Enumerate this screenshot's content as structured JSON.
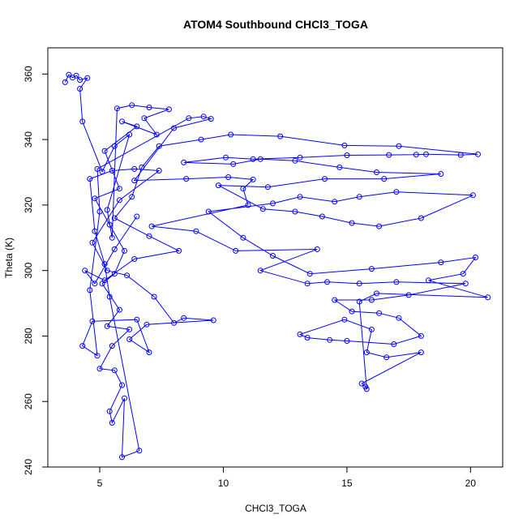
{
  "chart_data": {
    "type": "scatter",
    "title": "ATOM4 Southbound CHCl3_TOGA",
    "xlabel": "CHCl3_TOGA",
    "ylabel": "Theta (K)",
    "xlim": [
      2.9,
      21.3
    ],
    "ylim": [
      240,
      368
    ],
    "xticks": [
      5,
      10,
      15,
      20
    ],
    "yticks": [
      240,
      260,
      280,
      300,
      320,
      340,
      360
    ],
    "grid": false,
    "legend": "none",
    "style": "points connected by lines (open circles)",
    "series_color": "#0000ff",
    "series": [
      {
        "points": [
          [
            3.6,
            357.5
          ],
          [
            3.75,
            359.8
          ],
          [
            3.9,
            358.9
          ],
          [
            4.05,
            359.5
          ],
          [
            4.2,
            358.2
          ],
          [
            4.5,
            358.8
          ],
          [
            4.2,
            355.5
          ],
          [
            4.3,
            345.5
          ],
          [
            5.1,
            330.2
          ],
          [
            5.6,
            338.0
          ],
          [
            6.2,
            341.5
          ],
          [
            5.3,
            318.5
          ],
          [
            5.5,
            310.0
          ],
          [
            5.7,
            349.5
          ],
          [
            6.3,
            350.5
          ],
          [
            7.0,
            349.8
          ],
          [
            7.8,
            349.2
          ],
          [
            6.8,
            346.5
          ],
          [
            7.3,
            341.5
          ],
          [
            5.9,
            345.5
          ],
          [
            6.5,
            344.0
          ],
          [
            5.2,
            336.5
          ],
          [
            5.8,
            325.0
          ],
          [
            4.8,
            322.0
          ],
          [
            5.4,
            314.0
          ],
          [
            6.0,
            306.0
          ],
          [
            5.6,
            299.0
          ],
          [
            5.1,
            296.0
          ],
          [
            5.8,
            288.0
          ],
          [
            5.3,
            283.0
          ],
          [
            6.2,
            282.0
          ],
          [
            5.5,
            277.0
          ],
          [
            5.0,
            270.0
          ],
          [
            5.6,
            269.5
          ],
          [
            5.9,
            265.0
          ],
          [
            5.4,
            257.0
          ],
          [
            5.5,
            253.5
          ],
          [
            6.0,
            261.0
          ],
          [
            5.9,
            243.0
          ],
          [
            6.6,
            245.0
          ],
          [
            5.4,
            292.0
          ],
          [
            5.2,
            302.0
          ],
          [
            4.8,
            312.0
          ],
          [
            4.6,
            328.0
          ],
          [
            5.5,
            330.5
          ],
          [
            6.4,
            331.0
          ],
          [
            7.4,
            330.5
          ],
          [
            5.8,
            321.5
          ],
          [
            4.7,
            308.5
          ],
          [
            5.3,
            300.0
          ],
          [
            6.1,
            298.5
          ],
          [
            7.2,
            292.0
          ],
          [
            8.0,
            284.0
          ],
          [
            8.4,
            285.5
          ],
          [
            9.6,
            284.8
          ],
          [
            6.9,
            283.5
          ],
          [
            6.2,
            279.0
          ],
          [
            7.0,
            275.0
          ],
          [
            6.5,
            285.0
          ],
          [
            4.7,
            284.5
          ],
          [
            4.3,
            277.0
          ],
          [
            4.9,
            274.0
          ],
          [
            4.6,
            294.0
          ],
          [
            5.0,
            318.0
          ],
          [
            4.9,
            331.0
          ],
          [
            8.6,
            346.5
          ],
          [
            9.2,
            347.0
          ],
          [
            9.5,
            346.3
          ],
          [
            8.0,
            343.5
          ],
          [
            6.4,
            327.5
          ],
          [
            8.5,
            328.0
          ],
          [
            10.2,
            328.5
          ],
          [
            11.2,
            327.8
          ],
          [
            10.8,
            325.0
          ],
          [
            11.0,
            320.0
          ],
          [
            7.1,
            313.5
          ],
          [
            8.9,
            312.0
          ],
          [
            10.5,
            306.0
          ],
          [
            13.8,
            306.5
          ],
          [
            11.5,
            300.0
          ],
          [
            13.4,
            296.0
          ],
          [
            14.2,
            296.5
          ],
          [
            15.5,
            296.0
          ],
          [
            17.0,
            296.5
          ],
          [
            19.8,
            296.0
          ],
          [
            17.5,
            292.5
          ],
          [
            16.0,
            291.0
          ],
          [
            14.5,
            291.0
          ],
          [
            15.2,
            287.5
          ],
          [
            16.3,
            287.0
          ],
          [
            17.1,
            285.5
          ],
          [
            18.0,
            280.0
          ],
          [
            16.9,
            277.5
          ],
          [
            15.0,
            278.5
          ],
          [
            14.3,
            278.8
          ],
          [
            13.4,
            279.5
          ],
          [
            13.1,
            280.5
          ],
          [
            14.9,
            285.0
          ],
          [
            16.0,
            282.0
          ],
          [
            15.8,
            275.0
          ],
          [
            16.6,
            273.5
          ],
          [
            18.0,
            275.0
          ],
          [
            15.6,
            265.5
          ],
          [
            15.75,
            264.5
          ],
          [
            15.8,
            263.8
          ],
          [
            15.5,
            290.5
          ],
          [
            16.2,
            293.0
          ],
          [
            20.7,
            291.8
          ],
          [
            18.3,
            297.0
          ],
          [
            19.7,
            299.0
          ],
          [
            20.2,
            304.0
          ],
          [
            18.8,
            302.5
          ],
          [
            16.0,
            300.5
          ],
          [
            13.5,
            299.0
          ],
          [
            12.0,
            304.5
          ],
          [
            10.8,
            310.0
          ],
          [
            9.4,
            318.0
          ],
          [
            12.0,
            320.5
          ],
          [
            13.1,
            322.5
          ],
          [
            14.5,
            321.0
          ],
          [
            15.5,
            322.5
          ],
          [
            17.0,
            324.0
          ],
          [
            20.1,
            323.0
          ],
          [
            18.0,
            316.0
          ],
          [
            16.3,
            313.5
          ],
          [
            15.2,
            314.5
          ],
          [
            14.0,
            316.5
          ],
          [
            12.9,
            318.0
          ],
          [
            11.6,
            318.8
          ],
          [
            9.8,
            326.0
          ],
          [
            11.8,
            325.5
          ],
          [
            14.1,
            328.0
          ],
          [
            16.5,
            328.0
          ],
          [
            18.8,
            329.5
          ],
          [
            16.2,
            330.0
          ],
          [
            14.7,
            331.5
          ],
          [
            12.9,
            333.5
          ],
          [
            11.5,
            334.0
          ],
          [
            10.4,
            332.5
          ],
          [
            8.4,
            333.0
          ],
          [
            10.1,
            334.5
          ],
          [
            11.2,
            334.0
          ],
          [
            13.1,
            334.5
          ],
          [
            15.0,
            335.2
          ],
          [
            16.7,
            335.3
          ],
          [
            17.8,
            335.4
          ],
          [
            18.2,
            335.5
          ],
          [
            19.6,
            335.3
          ],
          [
            20.3,
            335.5
          ],
          [
            17.1,
            338.0
          ],
          [
            14.9,
            338.2
          ],
          [
            12.3,
            341.0
          ],
          [
            10.3,
            341.5
          ],
          [
            9.1,
            340.0
          ],
          [
            7.4,
            338.0
          ],
          [
            6.7,
            331.5
          ],
          [
            6.3,
            322.5
          ],
          [
            5.6,
            316.0
          ],
          [
            7.0,
            310.5
          ],
          [
            8.2,
            306.0
          ],
          [
            6.4,
            303.5
          ],
          [
            5.2,
            297.0
          ],
          [
            4.4,
            300.0
          ],
          [
            4.8,
            296.0
          ],
          [
            5.6,
            306.5
          ],
          [
            6.5,
            316.5
          ]
        ]
      }
    ]
  }
}
